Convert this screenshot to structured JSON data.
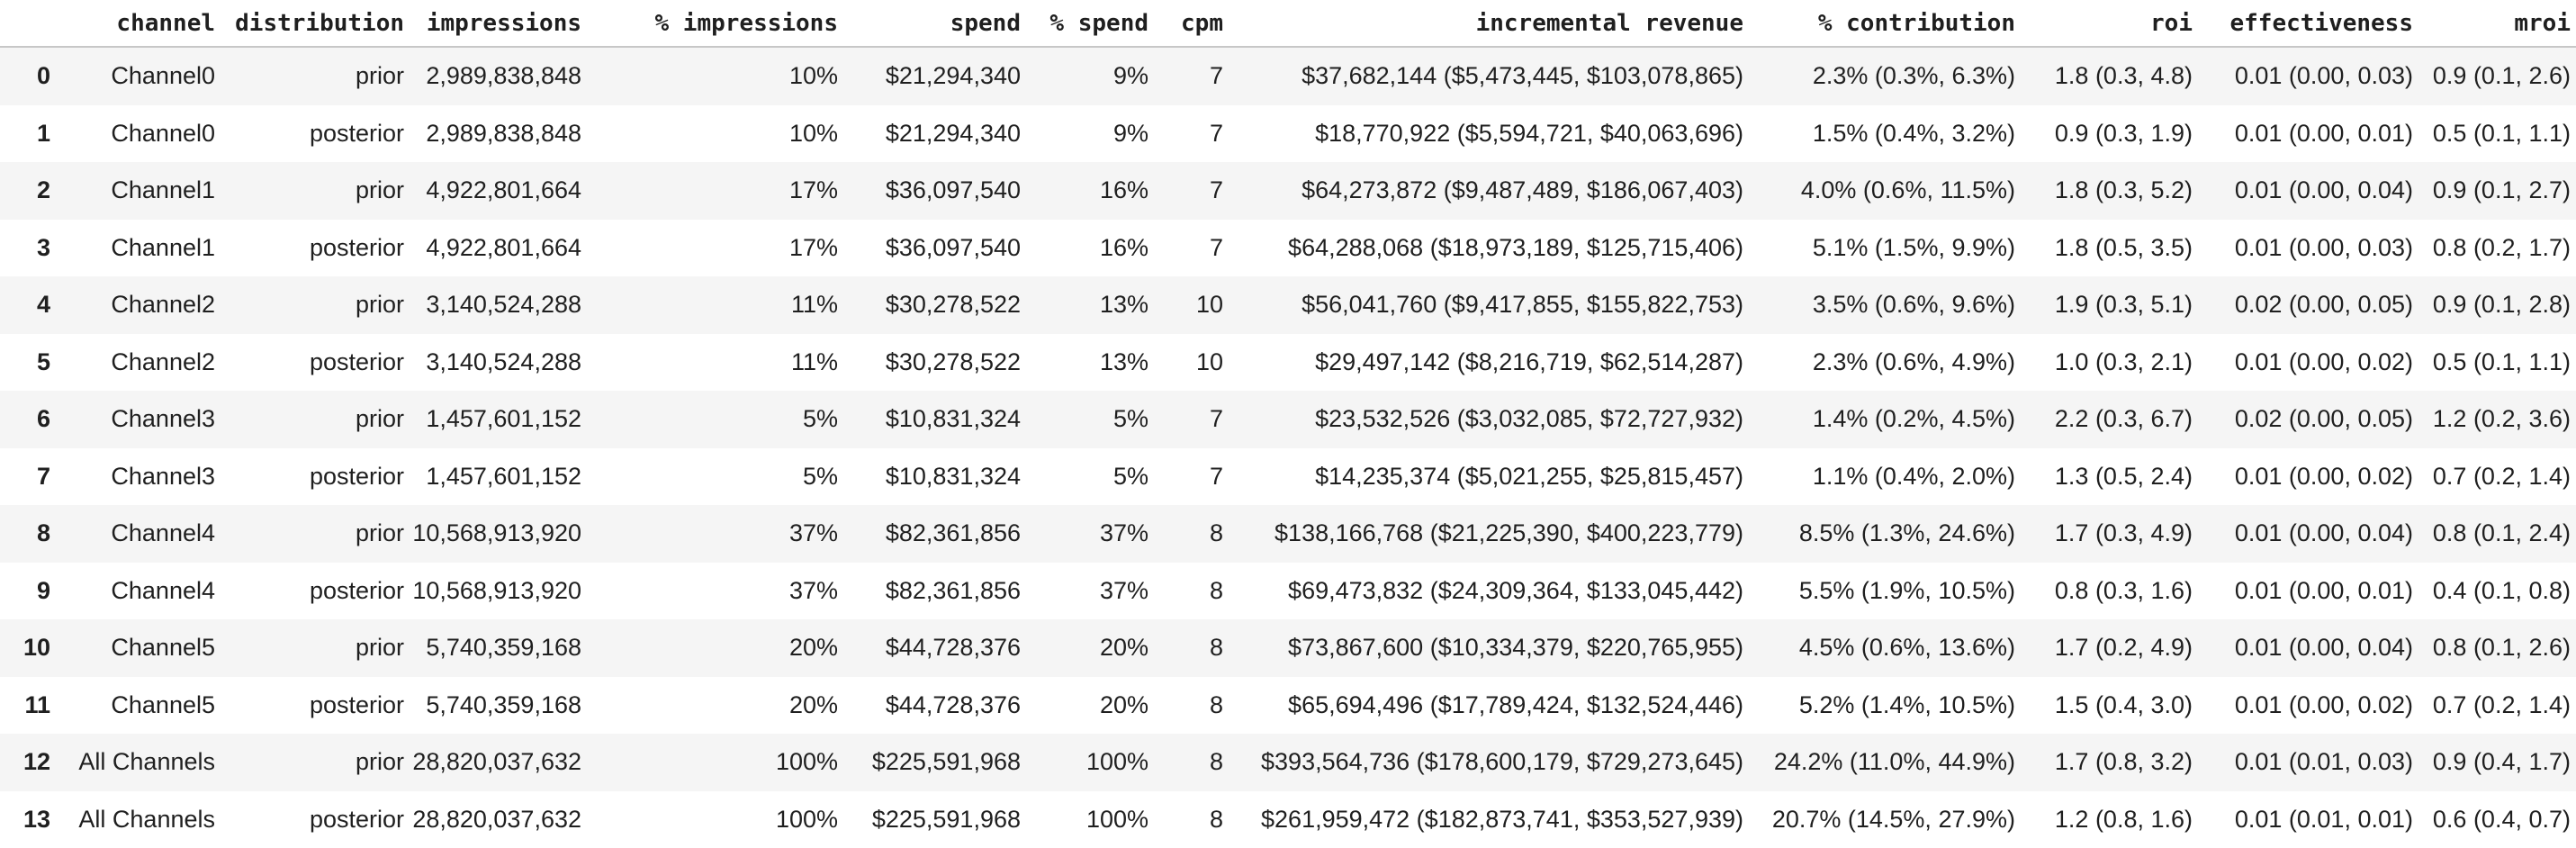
{
  "colors": {
    "background": "#ffffff",
    "stripe_row": "#f5f5f5",
    "header_border": "#c7c7c7",
    "text": "#1f1f1f"
  },
  "table": {
    "columns": [
      "",
      "channel",
      "distribution",
      "impressions",
      "% impressions",
      "spend",
      "% spend",
      "cpm",
      "incremental revenue",
      "% contribution",
      "roi",
      "effectiveness",
      "mroi"
    ],
    "rows": [
      [
        "0",
        "Channel0",
        "prior",
        "2,989,838,848",
        "10%",
        "$21,294,340",
        "9%",
        "7",
        "$37,682,144 ($5,473,445, $103,078,865)",
        "2.3% (0.3%, 6.3%)",
        "1.8 (0.3, 4.8)",
        "0.01 (0.00, 0.03)",
        "0.9 (0.1, 2.6)"
      ],
      [
        "1",
        "Channel0",
        "posterior",
        "2,989,838,848",
        "10%",
        "$21,294,340",
        "9%",
        "7",
        "$18,770,922 ($5,594,721, $40,063,696)",
        "1.5% (0.4%, 3.2%)",
        "0.9 (0.3, 1.9)",
        "0.01 (0.00, 0.01)",
        "0.5 (0.1, 1.1)"
      ],
      [
        "2",
        "Channel1",
        "prior",
        "4,922,801,664",
        "17%",
        "$36,097,540",
        "16%",
        "7",
        "$64,273,872 ($9,487,489, $186,067,403)",
        "4.0% (0.6%, 11.5%)",
        "1.8 (0.3, 5.2)",
        "0.01 (0.00, 0.04)",
        "0.9 (0.1, 2.7)"
      ],
      [
        "3",
        "Channel1",
        "posterior",
        "4,922,801,664",
        "17%",
        "$36,097,540",
        "16%",
        "7",
        "$64,288,068 ($18,973,189, $125,715,406)",
        "5.1% (1.5%, 9.9%)",
        "1.8 (0.5, 3.5)",
        "0.01 (0.00, 0.03)",
        "0.8 (0.2, 1.7)"
      ],
      [
        "4",
        "Channel2",
        "prior",
        "3,140,524,288",
        "11%",
        "$30,278,522",
        "13%",
        "10",
        "$56,041,760 ($9,417,855, $155,822,753)",
        "3.5% (0.6%, 9.6%)",
        "1.9 (0.3, 5.1)",
        "0.02 (0.00, 0.05)",
        "0.9 (0.1, 2.8)"
      ],
      [
        "5",
        "Channel2",
        "posterior",
        "3,140,524,288",
        "11%",
        "$30,278,522",
        "13%",
        "10",
        "$29,497,142 ($8,216,719, $62,514,287)",
        "2.3% (0.6%, 4.9%)",
        "1.0 (0.3, 2.1)",
        "0.01 (0.00, 0.02)",
        "0.5 (0.1, 1.1)"
      ],
      [
        "6",
        "Channel3",
        "prior",
        "1,457,601,152",
        "5%",
        "$10,831,324",
        "5%",
        "7",
        "$23,532,526 ($3,032,085, $72,727,932)",
        "1.4% (0.2%, 4.5%)",
        "2.2 (0.3, 6.7)",
        "0.02 (0.00, 0.05)",
        "1.2 (0.2, 3.6)"
      ],
      [
        "7",
        "Channel3",
        "posterior",
        "1,457,601,152",
        "5%",
        "$10,831,324",
        "5%",
        "7",
        "$14,235,374 ($5,021,255, $25,815,457)",
        "1.1% (0.4%, 2.0%)",
        "1.3 (0.5, 2.4)",
        "0.01 (0.00, 0.02)",
        "0.7 (0.2, 1.4)"
      ],
      [
        "8",
        "Channel4",
        "prior",
        "10,568,913,920",
        "37%",
        "$82,361,856",
        "37%",
        "8",
        "$138,166,768 ($21,225,390, $400,223,779)",
        "8.5% (1.3%, 24.6%)",
        "1.7 (0.3, 4.9)",
        "0.01 (0.00, 0.04)",
        "0.8 (0.1, 2.4)"
      ],
      [
        "9",
        "Channel4",
        "posterior",
        "10,568,913,920",
        "37%",
        "$82,361,856",
        "37%",
        "8",
        "$69,473,832 ($24,309,364, $133,045,442)",
        "5.5% (1.9%, 10.5%)",
        "0.8 (0.3, 1.6)",
        "0.01 (0.00, 0.01)",
        "0.4 (0.1, 0.8)"
      ],
      [
        "10",
        "Channel5",
        "prior",
        "5,740,359,168",
        "20%",
        "$44,728,376",
        "20%",
        "8",
        "$73,867,600 ($10,334,379, $220,765,955)",
        "4.5% (0.6%, 13.6%)",
        "1.7 (0.2, 4.9)",
        "0.01 (0.00, 0.04)",
        "0.8 (0.1, 2.6)"
      ],
      [
        "11",
        "Channel5",
        "posterior",
        "5,740,359,168",
        "20%",
        "$44,728,376",
        "20%",
        "8",
        "$65,694,496 ($17,789,424, $132,524,446)",
        "5.2% (1.4%, 10.5%)",
        "1.5 (0.4, 3.0)",
        "0.01 (0.00, 0.02)",
        "0.7 (0.2, 1.4)"
      ],
      [
        "12",
        "All Channels",
        "prior",
        "28,820,037,632",
        "100%",
        "$225,591,968",
        "100%",
        "8",
        "$393,564,736 ($178,600,179, $729,273,645)",
        "24.2% (11.0%, 44.9%)",
        "1.7 (0.8, 3.2)",
        "0.01 (0.01, 0.03)",
        "0.9 (0.4, 1.7)"
      ],
      [
        "13",
        "All Channels",
        "posterior",
        "28,820,037,632",
        "100%",
        "$225,591,968",
        "100%",
        "8",
        "$261,959,472 ($182,873,741, $353,527,939)",
        "20.7% (14.5%, 27.9%)",
        "1.2 (0.8, 1.6)",
        "0.01 (0.01, 0.01)",
        "0.6 (0.4, 0.7)"
      ]
    ]
  }
}
